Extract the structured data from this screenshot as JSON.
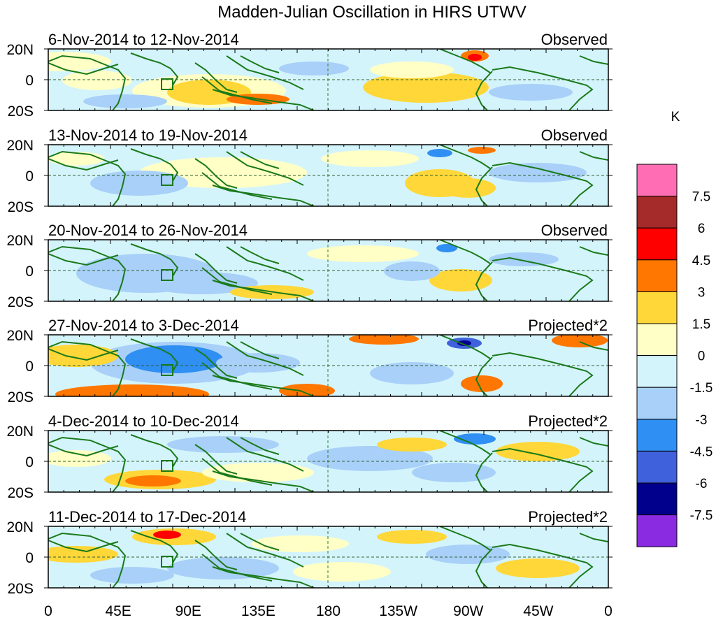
{
  "title": "Madden-Julian Oscillation in HIRS UTWV",
  "panels": [
    {
      "date_range": "6-Nov-2014 to 12-Nov-2014",
      "kind": "Observed"
    },
    {
      "date_range": "13-Nov-2014 to 19-Nov-2014",
      "kind": "Observed"
    },
    {
      "date_range": "20-Nov-2014 to 26-Nov-2014",
      "kind": "Observed"
    },
    {
      "date_range": "27-Nov-2014 to 3-Dec-2014",
      "kind": "Projected*2"
    },
    {
      "date_range": "4-Dec-2014 to 10-Dec-2014",
      "kind": "Projected*2"
    },
    {
      "date_range": "11-Dec-2014 to 17-Dec-2014",
      "kind": "Projected*2"
    }
  ],
  "lat_labels": [
    "20N",
    "0",
    "20S"
  ],
  "lon_labels": [
    "0",
    "45E",
    "90E",
    "135E",
    "180",
    "135W",
    "90W",
    "45W",
    "0"
  ],
  "colorbar": {
    "unit": "K",
    "labels": [
      "7.5",
      "6",
      "4.5",
      "3",
      "1.5",
      "0",
      "-1.5",
      "-3",
      "-4.5",
      "-6",
      "-7.5"
    ],
    "colors": [
      "#ff6eb4",
      "#a52a2a",
      "#ff0000",
      "#ff7700",
      "#ffd738",
      "#ffffc6",
      "#d4f4fc",
      "#a8d0f8",
      "#2f8ff2",
      "#3f62dc",
      "#00008c",
      "#8a2be2"
    ]
  },
  "palette": {
    "ocean": "#d4f4fc",
    "coast": "#1a7a1a",
    "pos1": "#ffffc6",
    "pos2": "#ffd738",
    "pos3": "#ff7700",
    "pos4": "#ff0000",
    "neg1": "#a8d0f8",
    "neg2": "#2f8ff2",
    "neg3": "#3f62dc",
    "neg4": "#00008c"
  }
}
